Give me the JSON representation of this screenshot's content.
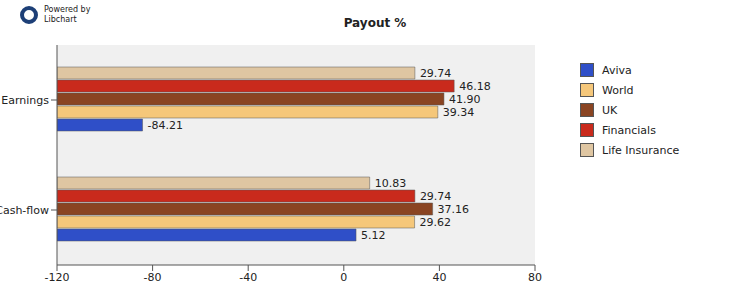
{
  "chart_data": {
    "type": "bar",
    "title": "Payout %",
    "annotations": [
      "Powered by",
      "Libchart"
    ],
    "orientation": "horizontal",
    "categories": [
      "Earnings",
      "Cash-flow"
    ],
    "series": [
      {
        "name": "Aviva",
        "color": "#2f4fc8",
        "values": [
          -84.21,
          5.12
        ],
        "value_labels": [
          "-84.21",
          "5.12"
        ]
      },
      {
        "name": "World",
        "color": "#f5c77a",
        "values": [
          39.34,
          29.62
        ],
        "value_labels": [
          "39.34",
          "29.62"
        ]
      },
      {
        "name": "UK",
        "color": "#8a4422",
        "values": [
          41.9,
          37.16
        ],
        "value_labels": [
          "41.90",
          "37.16"
        ]
      },
      {
        "name": "Financials",
        "color": "#c92a1c",
        "values": [
          46.18,
          29.74
        ],
        "value_labels": [
          "46.18",
          "29.74"
        ]
      },
      {
        "name": "Life Insurance",
        "color": "#dfc6a2",
        "values": [
          29.74,
          10.83
        ],
        "value_labels": [
          "29.74",
          "10.83"
        ]
      }
    ],
    "xlim": [
      -120,
      80
    ],
    "xticks": [
      -120,
      -80,
      -40,
      0,
      40,
      80
    ],
    "grid": true,
    "data_labels": true,
    "legend": "right"
  }
}
